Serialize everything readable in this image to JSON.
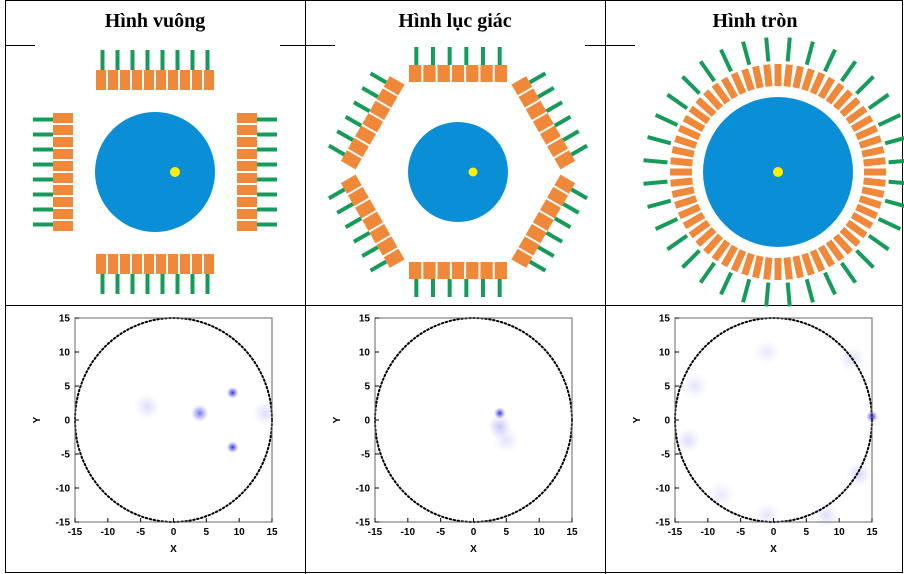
{
  "header": {
    "columns": [
      "Hình vuông",
      "Hình lục giác",
      "Hình tròn"
    ]
  },
  "plots": [
    {
      "x_label": "X",
      "y_label": "Y",
      "xlim": [
        -15,
        15
      ],
      "ylim": [
        -15,
        15
      ],
      "xticks": [
        -15,
        -10,
        -5,
        0,
        5,
        10,
        15
      ],
      "yticks": [
        -15,
        -10,
        -5,
        0,
        5,
        10,
        15
      ],
      "circle_radius": 15,
      "spots": [
        {
          "x": 4,
          "y": 1,
          "intensity": 0.6
        },
        {
          "x": 9,
          "y": 4,
          "intensity": 0.9
        },
        {
          "x": 9,
          "y": -4,
          "intensity": 0.9
        },
        {
          "x": -4,
          "y": 2,
          "intensity": 0.15
        },
        {
          "x": 14,
          "y": 1,
          "intensity": 0.15
        }
      ]
    },
    {
      "x_label": "X",
      "y_label": "Y",
      "xlim": [
        -15,
        15
      ],
      "ylim": [
        -15,
        15
      ],
      "xticks": [
        -15,
        -10,
        -5,
        0,
        5,
        10,
        15
      ],
      "yticks": [
        -15,
        -10,
        -5,
        0,
        5,
        10,
        15
      ],
      "circle_radius": 15,
      "spots": [
        {
          "x": 4,
          "y": 1,
          "intensity": 0.9
        },
        {
          "x": 4,
          "y": -1,
          "intensity": 0.25
        },
        {
          "x": 5,
          "y": -3,
          "intensity": 0.12
        }
      ]
    },
    {
      "x_label": "X",
      "y_label": "Y",
      "xlim": [
        -15,
        15
      ],
      "ylim": [
        -15,
        15
      ],
      "xticks": [
        -15,
        -10,
        -5,
        0,
        5,
        10,
        15
      ],
      "yticks": [
        -15,
        -10,
        -5,
        0,
        5,
        10,
        15
      ],
      "circle_radius": 15,
      "spots": [
        {
          "x": 15,
          "y": 0.5,
          "intensity": 0.9
        },
        {
          "x": -13,
          "y": -3,
          "intensity": 0.15
        },
        {
          "x": -12,
          "y": 5,
          "intensity": 0.12
        },
        {
          "x": 12,
          "y": 9,
          "intensity": 0.15
        },
        {
          "x": 13,
          "y": -8,
          "intensity": 0.18
        },
        {
          "x": -1,
          "y": -14,
          "intensity": 0.12
        },
        {
          "x": -1,
          "y": 10,
          "intensity": 0.1
        },
        {
          "x": 8,
          "y": -14,
          "intensity": 0.15
        },
        {
          "x": -8,
          "y": -11,
          "intensity": 0.1
        }
      ]
    }
  ]
}
